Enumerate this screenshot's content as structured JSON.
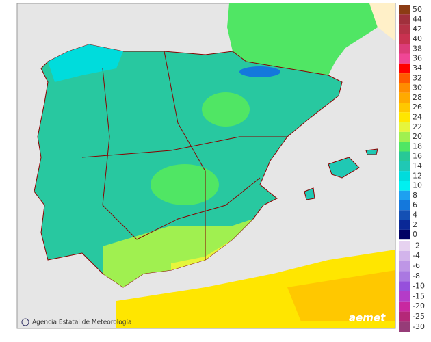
{
  "legend": {
    "groups": [
      {
        "items": [
          {
            "label": "50",
            "color": "#8c3c14"
          },
          {
            "label": "44",
            "color": "#a0303c"
          },
          {
            "label": "42",
            "color": "#b43246"
          },
          {
            "label": "40",
            "color": "#c83250"
          },
          {
            "label": "38",
            "color": "#dc3c78"
          },
          {
            "label": "36",
            "color": "#f04696"
          },
          {
            "label": "34",
            "color": "#ff0000"
          },
          {
            "label": "32",
            "color": "#ff5a00"
          },
          {
            "label": "30",
            "color": "#ff8c00"
          },
          {
            "label": "28",
            "color": "#ffaa00"
          },
          {
            "label": "26",
            "color": "#ffc800"
          },
          {
            "label": "24",
            "color": "#ffe600"
          },
          {
            "label": "22",
            "color": "#e6f53c"
          },
          {
            "label": "20",
            "color": "#a0f050"
          },
          {
            "label": "18",
            "color": "#50e664"
          },
          {
            "label": "16",
            "color": "#28c896"
          },
          {
            "label": "14",
            "color": "#20c8b4"
          },
          {
            "label": "12",
            "color": "#00dcdc"
          },
          {
            "label": "10",
            "color": "#00f0f0"
          },
          {
            "label": "8",
            "color": "#1ea0f0"
          },
          {
            "label": "6",
            "color": "#1478dc"
          },
          {
            "label": "4",
            "color": "#1450b4"
          },
          {
            "label": "2",
            "color": "#0a2896"
          },
          {
            "label": "0",
            "color": "#000064"
          }
        ]
      },
      {
        "items": [
          {
            "label": "-2",
            "color": "#e6d2f0"
          },
          {
            "label": "-4",
            "color": "#d2b4eb"
          },
          {
            "label": "-6",
            "color": "#be96e6"
          },
          {
            "label": "-8",
            "color": "#aa78e1"
          },
          {
            "label": "-10",
            "color": "#9650dc"
          },
          {
            "label": "-15",
            "color": "#b43cc8"
          },
          {
            "label": "-20",
            "color": "#c828a0"
          },
          {
            "label": "-25",
            "color": "#b42878"
          },
          {
            "label": "-30",
            "color": "#963c78"
          }
        ]
      }
    ]
  },
  "credit": {
    "agency": "Agencia Estatal de Meteorología",
    "logo": "aemet"
  }
}
